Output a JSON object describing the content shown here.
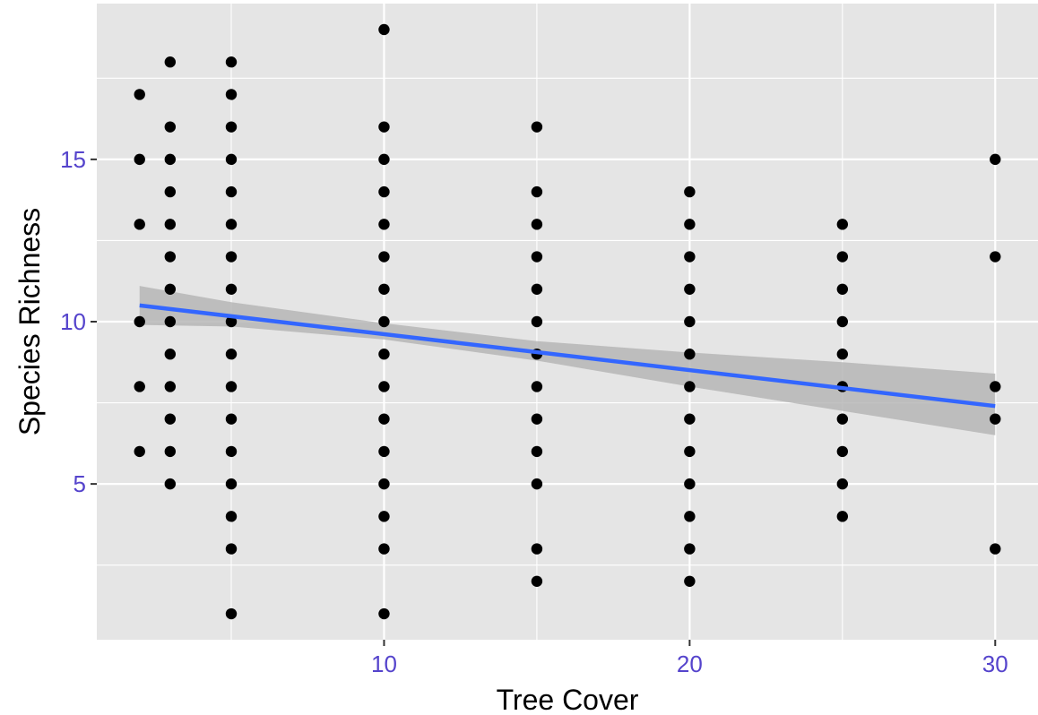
{
  "colors": {
    "panel_background": "#e5e5e5",
    "grid": "#ffffff",
    "points": "#000000",
    "trend_line": "#3366ff",
    "confidence_band": "#b3b3b3",
    "tick_labels": "#5544cc",
    "tick_marks": "#333333"
  },
  "chart_data": {
    "type": "scatter",
    "title": "",
    "xlabel": "Tree Cover",
    "ylabel": "Species Richness",
    "xlim": [
      0.6,
      31.4
    ],
    "ylim": [
      0.2,
      19.8
    ],
    "x_ticks": [
      10,
      20,
      30
    ],
    "x_tick_labels": [
      "10",
      "20",
      "30"
    ],
    "y_ticks": [
      5,
      10,
      15
    ],
    "y_tick_labels": [
      "5",
      "10",
      "15"
    ],
    "x_minor_ticks": [
      5,
      15,
      25
    ],
    "y_minor_ticks": [
      2.5,
      7.5,
      12.5,
      17.5
    ],
    "grid": true,
    "legend": "none",
    "points": [
      {
        "x": 2,
        "y": 17
      },
      {
        "x": 2,
        "y": 15
      },
      {
        "x": 2,
        "y": 13
      },
      {
        "x": 2,
        "y": 10
      },
      {
        "x": 2,
        "y": 8
      },
      {
        "x": 2,
        "y": 6
      },
      {
        "x": 3,
        "y": 18
      },
      {
        "x": 3,
        "y": 16
      },
      {
        "x": 3,
        "y": 15
      },
      {
        "x": 3,
        "y": 14
      },
      {
        "x": 3,
        "y": 13
      },
      {
        "x": 3,
        "y": 12
      },
      {
        "x": 3,
        "y": 11
      },
      {
        "x": 3,
        "y": 10
      },
      {
        "x": 3,
        "y": 9
      },
      {
        "x": 3,
        "y": 8
      },
      {
        "x": 3,
        "y": 7
      },
      {
        "x": 3,
        "y": 6
      },
      {
        "x": 3,
        "y": 5
      },
      {
        "x": 5,
        "y": 18
      },
      {
        "x": 5,
        "y": 17
      },
      {
        "x": 5,
        "y": 16
      },
      {
        "x": 5,
        "y": 15
      },
      {
        "x": 5,
        "y": 14
      },
      {
        "x": 5,
        "y": 13
      },
      {
        "x": 5,
        "y": 12
      },
      {
        "x": 5,
        "y": 11
      },
      {
        "x": 5,
        "y": 10
      },
      {
        "x": 5,
        "y": 9
      },
      {
        "x": 5,
        "y": 8
      },
      {
        "x": 5,
        "y": 7
      },
      {
        "x": 5,
        "y": 6
      },
      {
        "x": 5,
        "y": 5
      },
      {
        "x": 5,
        "y": 4
      },
      {
        "x": 5,
        "y": 3
      },
      {
        "x": 5,
        "y": 1
      },
      {
        "x": 10,
        "y": 19
      },
      {
        "x": 10,
        "y": 16
      },
      {
        "x": 10,
        "y": 15
      },
      {
        "x": 10,
        "y": 14
      },
      {
        "x": 10,
        "y": 13
      },
      {
        "x": 10,
        "y": 12
      },
      {
        "x": 10,
        "y": 11
      },
      {
        "x": 10,
        "y": 10
      },
      {
        "x": 10,
        "y": 9
      },
      {
        "x": 10,
        "y": 8
      },
      {
        "x": 10,
        "y": 7
      },
      {
        "x": 10,
        "y": 6
      },
      {
        "x": 10,
        "y": 5
      },
      {
        "x": 10,
        "y": 4
      },
      {
        "x": 10,
        "y": 3
      },
      {
        "x": 10,
        "y": 1
      },
      {
        "x": 15,
        "y": 16
      },
      {
        "x": 15,
        "y": 14
      },
      {
        "x": 15,
        "y": 13
      },
      {
        "x": 15,
        "y": 12
      },
      {
        "x": 15,
        "y": 11
      },
      {
        "x": 15,
        "y": 10
      },
      {
        "x": 15,
        "y": 9
      },
      {
        "x": 15,
        "y": 8
      },
      {
        "x": 15,
        "y": 7
      },
      {
        "x": 15,
        "y": 6
      },
      {
        "x": 15,
        "y": 5
      },
      {
        "x": 15,
        "y": 3
      },
      {
        "x": 15,
        "y": 2
      },
      {
        "x": 20,
        "y": 14
      },
      {
        "x": 20,
        "y": 13
      },
      {
        "x": 20,
        "y": 12
      },
      {
        "x": 20,
        "y": 11
      },
      {
        "x": 20,
        "y": 10
      },
      {
        "x": 20,
        "y": 9
      },
      {
        "x": 20,
        "y": 8
      },
      {
        "x": 20,
        "y": 7
      },
      {
        "x": 20,
        "y": 6
      },
      {
        "x": 20,
        "y": 5
      },
      {
        "x": 20,
        "y": 4
      },
      {
        "x": 20,
        "y": 3
      },
      {
        "x": 20,
        "y": 2
      },
      {
        "x": 25,
        "y": 13
      },
      {
        "x": 25,
        "y": 12
      },
      {
        "x": 25,
        "y": 11
      },
      {
        "x": 25,
        "y": 10
      },
      {
        "x": 25,
        "y": 9
      },
      {
        "x": 25,
        "y": 8
      },
      {
        "x": 25,
        "y": 7
      },
      {
        "x": 25,
        "y": 6
      },
      {
        "x": 25,
        "y": 5
      },
      {
        "x": 25,
        "y": 4
      },
      {
        "x": 30,
        "y": 15
      },
      {
        "x": 30,
        "y": 12
      },
      {
        "x": 30,
        "y": 8
      },
      {
        "x": 30,
        "y": 7
      },
      {
        "x": 30,
        "y": 3
      }
    ],
    "trend_line": {
      "x": [
        2,
        30
      ],
      "y": [
        10.5,
        7.4
      ]
    },
    "confidence_band": {
      "x": [
        2,
        5,
        10,
        15,
        20,
        25,
        30
      ],
      "upper": [
        11.1,
        10.6,
        9.95,
        9.4,
        9.05,
        8.75,
        8.4
      ],
      "lower": [
        9.9,
        9.85,
        9.45,
        8.8,
        8.0,
        7.25,
        6.5
      ]
    }
  }
}
